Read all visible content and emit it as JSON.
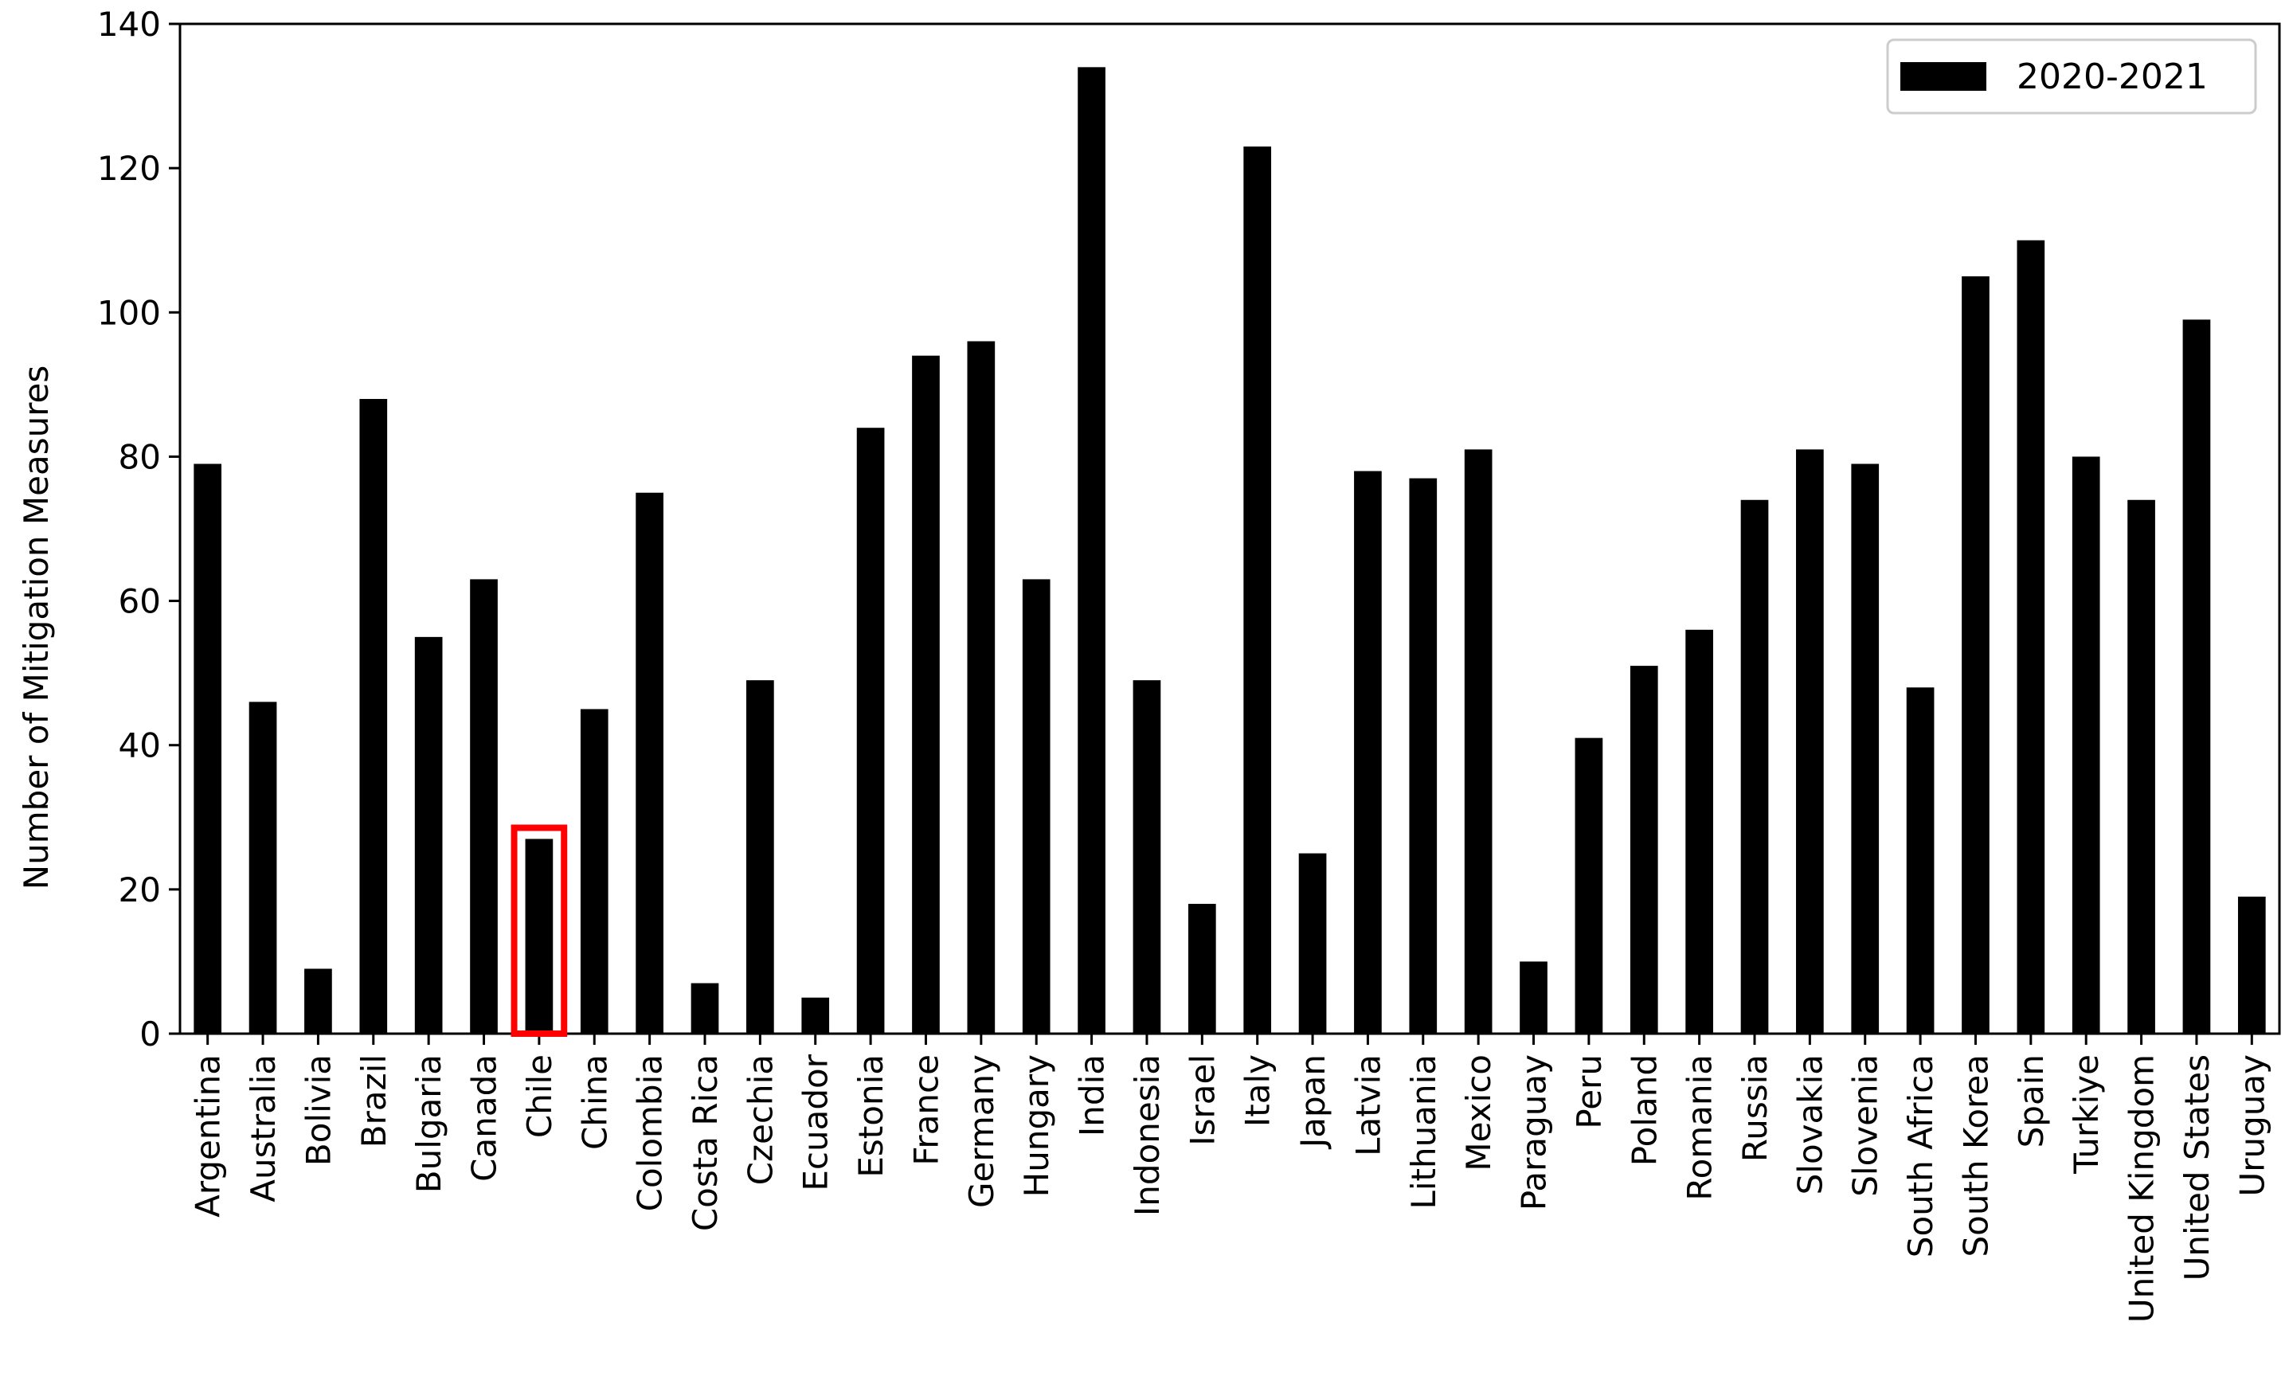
{
  "chart_data": {
    "type": "bar",
    "ylabel": "Number of Mitigation Measures",
    "xlabel": "",
    "ylim": [
      0,
      140
    ],
    "yticks": [
      0,
      20,
      40,
      60,
      80,
      100,
      120,
      140
    ],
    "grid": false,
    "legend_placement": "top-right",
    "bar_color": "#000000",
    "highlight_color": "#ff0000",
    "highlight_category": "Chile",
    "categories": [
      "Argentina",
      "Australia",
      "Bolivia",
      "Brazil",
      "Bulgaria",
      "Canada",
      "Chile",
      "China",
      "Colombia",
      "Costa Rica",
      "Czechia",
      "Ecuador",
      "Estonia",
      "France",
      "Germany",
      "Hungary",
      "India",
      "Indonesia",
      "Israel",
      "Italy",
      "Japan",
      "Latvia",
      "Lithuania",
      "Mexico",
      "Paraguay",
      "Peru",
      "Poland",
      "Romania",
      "Russia",
      "Slovakia",
      "Slovenia",
      "South Africa",
      "South Korea",
      "Spain",
      "Turkiye",
      "United Kingdom",
      "United States",
      "Uruguay"
    ],
    "series": [
      {
        "name": "2020-2021",
        "values": [
          79,
          46,
          9,
          88,
          55,
          63,
          27,
          45,
          75,
          7,
          49,
          5,
          84,
          94,
          96,
          63,
          134,
          49,
          18,
          123,
          25,
          78,
          77,
          81,
          10,
          41,
          51,
          56,
          74,
          81,
          79,
          48,
          105,
          110,
          80,
          74,
          99,
          19
        ]
      }
    ]
  }
}
